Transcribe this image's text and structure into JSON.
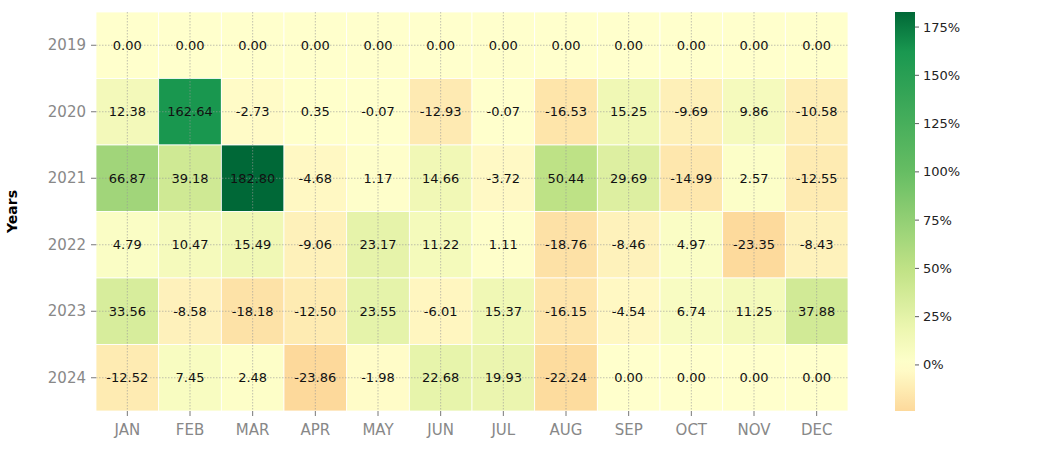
{
  "chart_data": {
    "type": "heatmap",
    "ylabel": "Years",
    "categories": [
      "JAN",
      "FEB",
      "MAR",
      "APR",
      "MAY",
      "JUN",
      "JUL",
      "AUG",
      "SEP",
      "OCT",
      "NOV",
      "DEC"
    ],
    "y_categories": [
      "2019",
      "2020",
      "2021",
      "2022",
      "2023",
      "2024"
    ],
    "values": [
      [
        0,
        0,
        0,
        0,
        0,
        0,
        0,
        0,
        0,
        0,
        0,
        0
      ],
      [
        12.38,
        162.64,
        -2.73,
        0.35,
        -0.07,
        -12.93,
        -0.07,
        -16.53,
        15.25,
        -9.69,
        9.86,
        -10.58
      ],
      [
        66.87,
        39.18,
        182.8,
        -4.68,
        1.17,
        14.66,
        -3.72,
        50.44,
        29.69,
        -14.99,
        2.57,
        -12.55
      ],
      [
        4.79,
        10.47,
        15.49,
        -9.06,
        23.17,
        11.22,
        1.11,
        -18.76,
        -8.46,
        4.97,
        -23.35,
        -8.43
      ],
      [
        33.56,
        -8.58,
        -18.18,
        -12.5,
        23.55,
        -6.01,
        15.37,
        -16.15,
        -4.54,
        6.74,
        11.25,
        37.88
      ],
      [
        -12.52,
        7.45,
        2.48,
        -23.86,
        -1.98,
        22.68,
        19.93,
        -22.24,
        0,
        0,
        0,
        0
      ]
    ],
    "value_labels": [
      [
        "0.00",
        "0.00",
        "0.00",
        "0.00",
        "0.00",
        "0.00",
        "0.00",
        "0.00",
        "0.00",
        "0.00",
        "0.00",
        "0.00"
      ],
      [
        "12.38",
        "162.64",
        "-2.73",
        "0.35",
        "-0.07",
        "-12.93",
        "-0.07",
        "-16.53",
        "15.25",
        "-9.69",
        "9.86",
        "-10.58"
      ],
      [
        "66.87",
        "39.18",
        "182.80",
        "-4.68",
        "1.17",
        "14.66",
        "-3.72",
        "50.44",
        "29.69",
        "-14.99",
        "2.57",
        "-12.55"
      ],
      [
        "4.79",
        "10.47",
        "15.49",
        "-9.06",
        "23.17",
        "11.22",
        "1.11",
        "-18.76",
        "-8.46",
        "4.97",
        "-23.35",
        "-8.43"
      ],
      [
        "33.56",
        "-8.58",
        "-18.18",
        "-12.50",
        "23.55",
        "-6.01",
        "15.37",
        "-16.15",
        "-4.54",
        "6.74",
        "11.25",
        "37.88"
      ],
      [
        "-12.52",
        "7.45",
        "2.48",
        "-23.86",
        "-1.98",
        "22.68",
        "19.93",
        "-22.24",
        "0.00",
        "0.00",
        "0.00",
        "0.00"
      ]
    ],
    "data_labels": true,
    "grid": true,
    "colorbar": {
      "range": [
        -23.86,
        182.8
      ],
      "ticks": [
        {
          "value": 0,
          "label": "0%"
        },
        {
          "value": 25,
          "label": "25%"
        },
        {
          "value": 50,
          "label": "50%"
        },
        {
          "value": 75,
          "label": "75%"
        },
        {
          "value": 100,
          "label": "100%"
        },
        {
          "value": 125,
          "label": "125%"
        },
        {
          "value": 150,
          "label": "150%"
        },
        {
          "value": 175,
          "label": "175%"
        }
      ]
    }
  }
}
